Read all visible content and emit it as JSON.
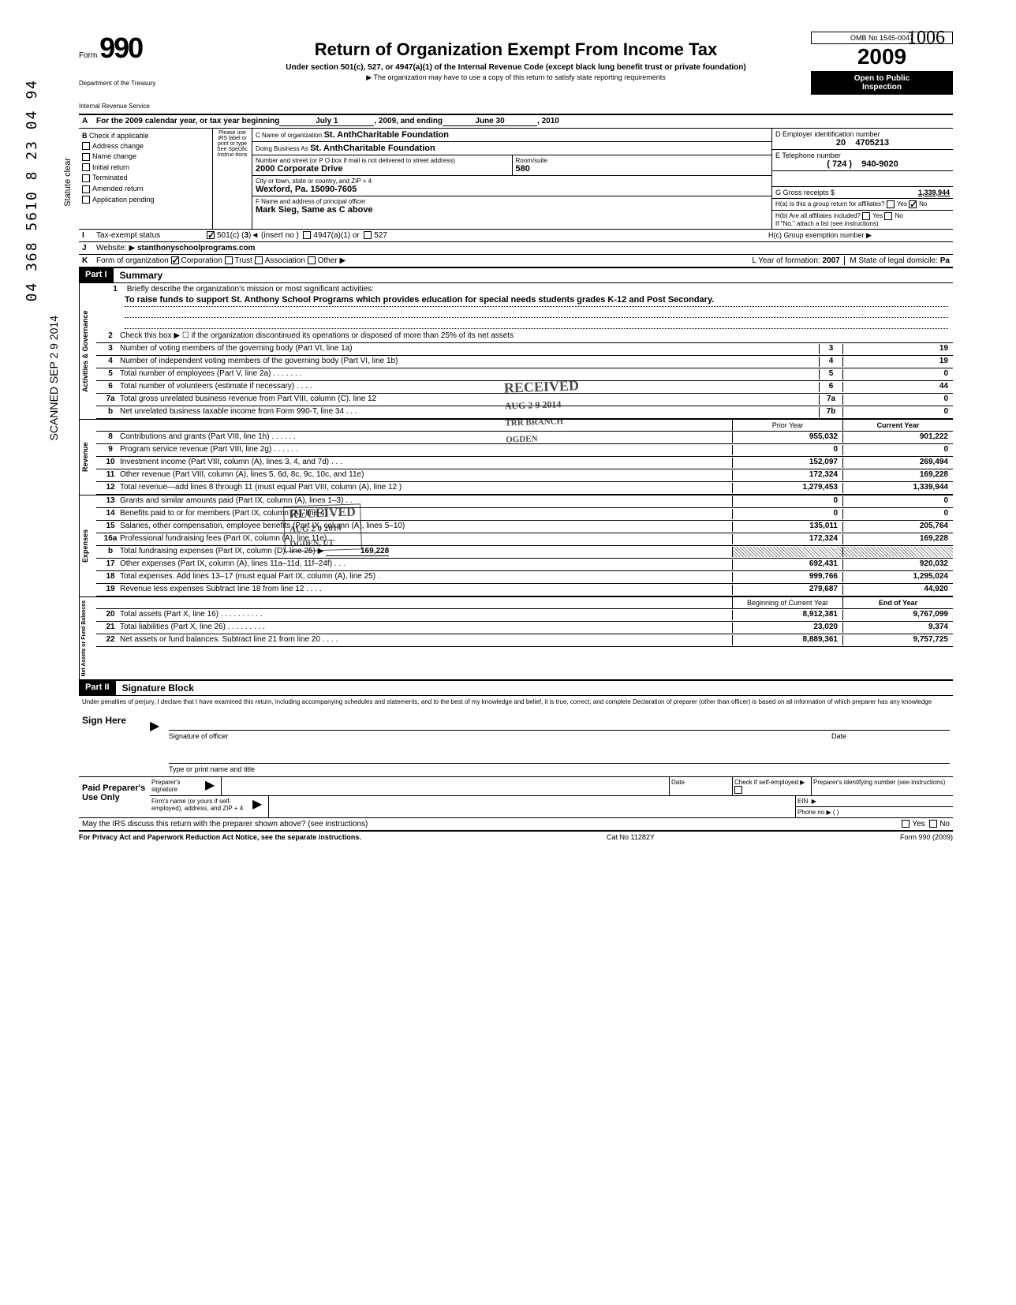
{
  "handwritten_top": "1006",
  "side_number": "04 368 5610 8 23 04 94",
  "side_date": "SCANNED SEP 2 9 2014",
  "statute_clear": "Statute clear",
  "header": {
    "form_word": "Form",
    "form_num": "990",
    "dept1": "Department of the Treasury",
    "dept2": "Internal Revenue Service",
    "title": "Return of Organization Exempt From Income Tax",
    "subtitle": "Under section 501(c), 527, or 4947(a)(1) of the Internal Revenue Code (except black lung benefit trust or private foundation)",
    "note": "▶ The organization may have to use a copy of this return to satisfy state reporting requirements",
    "omb": "OMB No  1545-0047",
    "year": "2009",
    "inspection1": "Open to Public",
    "inspection2": "Inspection"
  },
  "line_a": {
    "prefix": "A",
    "text": "For the 2009 calendar year, or tax year beginning",
    "begin": "July 1",
    "mid": ", 2009, and ending",
    "end": "June 30",
    "yr": ", 20",
    "yr_val": "10"
  },
  "section_b": {
    "letter": "B",
    "label": "Check if applicable",
    "items": [
      "Address change",
      "Name change",
      "Initial return",
      "Terminated",
      "Amended return",
      "Application pending"
    ],
    "irs_label": "Please use IRS label or print or type See Specific Instruc-tions"
  },
  "section_c": {
    "name_label": "C Name of organization",
    "name": "St. AnthCharitable Foundation",
    "dba_label": "Doing Business As",
    "dba": "St. AnthCharitable Foundation",
    "addr_label": "Number and street (or P O  box if mail is not delivered to street address)",
    "addr": "2000 Corporate Drive",
    "room_label": "Room/suite",
    "room": "580",
    "city_label": "City or town, state or country, and ZIP + 4",
    "city": "Wexford, Pa. 15090-7605",
    "officer_label": "F  Name and address of principal officer",
    "officer": "Mark Sieg, Same as C above"
  },
  "section_d": {
    "label": "D  Employer identification number",
    "val1": "20",
    "val2": "4705213",
    "e_label": "E  Telephone number",
    "e_area": "( 724 )",
    "e_num": "940-9020",
    "g_label": "G  Gross receipts $",
    "g_val": "1,339,944",
    "ha_label": "H(a)  Is this a group return for affiliates?",
    "hb_label": "H(b)  Are all affiliates included?",
    "h_note": "If \"No,\" attach a list  (see instructions)",
    "hc_label": "H(c) Group exemption number ▶",
    "yes": "Yes",
    "no": "No"
  },
  "line_i": {
    "letter": "I",
    "label": "Tax-exempt status",
    "opt1": "501(c) (",
    "opt1_val": "3",
    "opt1_suffix": ")◄ (insert no )",
    "opt2": "4947(a)(1) or",
    "opt3": "527"
  },
  "line_j": {
    "letter": "J",
    "label": "Website: ▶",
    "val": "stanthonyschoolprograms.com"
  },
  "line_k": {
    "letter": "K",
    "label": "Form of organization",
    "opts": [
      "Corporation",
      "Trust",
      "Association",
      "Other ▶"
    ],
    "l_label": "L  Year of formation:",
    "l_val": "2007",
    "m_label": "M State of legal domicile:",
    "m_val": "Pa"
  },
  "part1": {
    "header": "Part I",
    "title": "Summary",
    "q1_label": "Briefly describe the organization's mission or most significant activities:",
    "q1_text": "To raise funds to support St. Anthony School Programs which provides education for special needs students grades K-12 and Post Secondary.",
    "q2": "Check this box ▶ ☐  if the organization discontinued its operations or disposed of more than 25% of its net assets",
    "stamp_received": "RECEIVED",
    "stamp_date": "AUG 2 9 2014",
    "stamp_branch": "TRR BRANCH",
    "stamp_ogden": "OGDEN",
    "stamp_received2": "RECEIVED",
    "stamp_date2": "AUG 2 0 2014",
    "stamp_ogden2": "OGDEN, UT",
    "lines": [
      {
        "n": "3",
        "t": "Number of voting members of the governing body (Part VI, line 1a)",
        "box": "3",
        "v": "19"
      },
      {
        "n": "4",
        "t": "Number of independent voting members of the governing body (Part VI, line 1b)",
        "box": "4",
        "v": "19"
      },
      {
        "n": "5",
        "t": "Total number of employees (Part V, line 2a) .   .   .   .   .   .   .",
        "box": "5",
        "v": "0"
      },
      {
        "n": "6",
        "t": "Total number of volunteers (estimate if necessary)     .   .   .   .",
        "box": "6",
        "v": "44"
      },
      {
        "n": "7a",
        "t": "Total gross unrelated business revenue from Part VIII, column (C), line 12",
        "box": "7a",
        "v": "0"
      },
      {
        "n": "b",
        "t": "Net unrelated business taxable income from Form 990-T, line 34 .   .   .",
        "box": "7b",
        "v": "0"
      }
    ],
    "col_prior": "Prior Year",
    "col_current": "Current Year",
    "rev_lines": [
      {
        "n": "8",
        "t": "Contributions and grants (Part VIII, line 1h)   .   .   .   .   .   .",
        "p": "955,032",
        "c": "901,222"
      },
      {
        "n": "9",
        "t": "Program service revenue (Part VIII, line 2g)   .   .   .   .   .   .",
        "p": "0",
        "c": "0"
      },
      {
        "n": "10",
        "t": "Investment income (Part VIII, column (A), lines 3, 4, and 7d)   .   .   .",
        "p": "152,097",
        "c": "269,494"
      },
      {
        "n": "11",
        "t": "Other revenue (Part VIII, column (A), lines 5, 6d, 8c, 9c, 10c, and 11e)",
        "p": "172,324",
        "c": "169,228"
      },
      {
        "n": "12",
        "t": "Total revenue—add lines 8 through 11 (must equal Part VIII, column (A), line 12 )",
        "p": "1,279,453",
        "c": "1,339,944"
      }
    ],
    "exp_lines": [
      {
        "n": "13",
        "t": "Grants and similar amounts paid (Part IX, column (A), lines 1–3) .   .",
        "p": "0",
        "c": "0"
      },
      {
        "n": "14",
        "t": "Benefits paid to or for members (Part IX, column (A), line 4)   .   .   .",
        "p": "0",
        "c": "0"
      },
      {
        "n": "15",
        "t": "Salaries, other compensation, employee benefits (Part IX, column (A), lines 5–10)",
        "p": "135,011",
        "c": "205,764"
      },
      {
        "n": "16a",
        "t": "Professional fundraising fees (Part IX, column (A), line 11e)   .   .",
        "p": "172,324",
        "c": "169,228"
      },
      {
        "n": "b",
        "t": "Total fundraising expenses (Part IX, column (D), line 25) ▶",
        "inline": "169,228",
        "p": "",
        "c": "",
        "hatched": true
      },
      {
        "n": "17",
        "t": "Other expenses (Part IX, column (A), lines 11a–11d, 11f–24f) .   .   .",
        "p": "692,431",
        "c": "920,032"
      },
      {
        "n": "18",
        "t": "Total expenses. Add lines 13–17 (must equal Part IX, column (A), line 25) .",
        "p": "999,766",
        "c": "1,295,024"
      },
      {
        "n": "19",
        "t": "Revenue less expenses  Subtract line 18 from line 12   .   .   .   .",
        "p": "279,687",
        "c": "44,920"
      }
    ],
    "col_begin": "Beginning of Current Year",
    "col_end": "End of Year",
    "net_lines": [
      {
        "n": "20",
        "t": "Total assets (Part X, line 16) .   .   .   .   .   .   .   .   .   .",
        "p": "8,912,381",
        "c": "9,767,099"
      },
      {
        "n": "21",
        "t": "Total liabilities (Part X, line 26)   .   .   .   .   .   .   .   .   .",
        "p": "23,020",
        "c": "9,374"
      },
      {
        "n": "22",
        "t": "Net assets or fund balances. Subtract line 21 from line 20 .   .   .   .",
        "p": "8,889,361",
        "c": "9,757,725"
      }
    ],
    "vert_gov": "Activities & Governance",
    "vert_rev": "Revenue",
    "vert_exp": "Expenses",
    "vert_net": "Net Assets or Fund Balances"
  },
  "part2": {
    "header": "Part II",
    "title": "Signature Block",
    "disclosure": "Under penalties of perjury, I declare that I have examined this return, including accompanying schedules and statements, and to the best of my knowledge and belief, it is true, correct, and complete  Declaration of preparer (other than officer) is based on all information of which preparer has any knowledge",
    "sign_here": "Sign Here",
    "sig_officer": "Signature of officer",
    "date": "Date",
    "type_name": "Type or print name and title",
    "paid": "Paid Preparer's Use Only",
    "prep_sig": "Preparer's signature",
    "check_self": "Check if self-employed ▶",
    "prep_id": "Preparer's identifying number (see instructions)",
    "firm": "Firm's name (or yours if self-employed), address, and ZIP + 4",
    "ein": "EIN",
    "phone": "Phone no  ▶  (            )",
    "discuss": "May the IRS discuss this return with the preparer shown above? (see instructions)",
    "yes": "Yes",
    "no": "No"
  },
  "footer": {
    "left": "For Privacy Act and Paperwork Reduction Act Notice, see the separate instructions.",
    "mid": "Cat  No 11282Y",
    "right": "Form 990 (2009)"
  }
}
